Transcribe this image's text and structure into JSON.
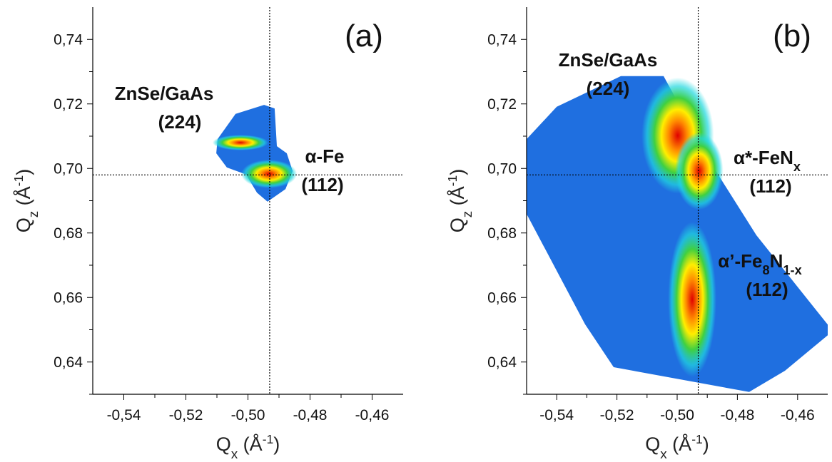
{
  "chart_data": [
    {
      "type": "map",
      "footprint_color": "#1f6fe0",
      "xlim": [
        -0.55,
        -0.45
      ],
      "ylim": [
        0.63,
        0.75
      ],
      "xticks": [
        {
          "value": -0.54,
          "label": "-0,54"
        },
        {
          "value": -0.52,
          "label": "-0,52"
        },
        {
          "value": -0.5,
          "label": "-0,50"
        },
        {
          "value": -0.48,
          "label": "-0,48"
        },
        {
          "value": -0.46,
          "label": "-0,46"
        }
      ],
      "yticks": [
        {
          "value": 0.64,
          "label": "0,64"
        },
        {
          "value": 0.66,
          "label": "0,66"
        },
        {
          "value": 0.68,
          "label": "0,68"
        },
        {
          "value": 0.7,
          "label": "0,70"
        },
        {
          "value": 0.72,
          "label": "0,72"
        },
        {
          "value": 0.74,
          "label": "0,74"
        }
      ],
      "xlabel": [
        {
          "t": "Q"
        },
        {
          "sub": "x"
        },
        {
          "t": " (Å"
        },
        {
          "sup": "-1"
        },
        {
          "t": ")"
        }
      ],
      "ylabel": [
        {
          "t": "Q"
        },
        {
          "sub": "z"
        },
        {
          "t": " (Å"
        },
        {
          "sup": "-1"
        },
        {
          "t": ")"
        }
      ],
      "reflines": {
        "x": -0.493,
        "y": 0.698
      },
      "footprint": {
        "x": [
          -0.5098,
          -0.504,
          -0.4948,
          -0.4914,
          -0.4907,
          -0.4875,
          -0.4856,
          -0.4879,
          -0.4937,
          -0.4971,
          -0.5006,
          -0.5068,
          -0.5102
        ],
        "y": [
          0.7091,
          0.7169,
          0.7197,
          0.7186,
          0.7069,
          0.7047,
          0.6992,
          0.6936,
          0.6897,
          0.6925,
          0.6981,
          0.7003,
          0.7047
        ]
      },
      "peaks": [
        {
          "x": -0.5024,
          "y": 0.708,
          "sx": 0.0045,
          "sy": 0.0012
        },
        {
          "x": -0.4932,
          "y": 0.6983,
          "sx": 0.0045,
          "sy": 0.0022
        }
      ],
      "annotations": [
        [
          {
            "t": "(a)"
          }
        ],
        [
          {
            "t": "ZnSe/GaAs"
          }
        ],
        [
          {
            "t": "(224)"
          }
        ],
        [
          {
            "t": "α-Fe"
          }
        ],
        [
          {
            "t": "(112)"
          }
        ]
      ]
    },
    {
      "type": "map",
      "footprint_color": "#1f6fe0",
      "xlim": [
        -0.55,
        -0.45
      ],
      "ylim": [
        0.63,
        0.75
      ],
      "xticks": [
        {
          "value": -0.54,
          "label": "-0,54"
        },
        {
          "value": -0.52,
          "label": "-0,52"
        },
        {
          "value": -0.5,
          "label": "-0,50"
        },
        {
          "value": -0.48,
          "label": "-0,48"
        },
        {
          "value": -0.46,
          "label": "-0,46"
        }
      ],
      "yticks": [
        {
          "value": 0.64,
          "label": "0,64"
        },
        {
          "value": 0.66,
          "label": "0,66"
        },
        {
          "value": 0.68,
          "label": "0,68"
        },
        {
          "value": 0.7,
          "label": "0,70"
        },
        {
          "value": 0.72,
          "label": "0,72"
        },
        {
          "value": 0.74,
          "label": "0,74"
        }
      ],
      "xlabel": [
        {
          "t": "Q"
        },
        {
          "sub": "x"
        },
        {
          "t": " (Å"
        },
        {
          "sup": "-1"
        },
        {
          "t": ")"
        }
      ],
      "ylabel": [
        {
          "t": "Q"
        },
        {
          "sub": "z"
        },
        {
          "t": " (Å"
        },
        {
          "sup": "-1"
        },
        {
          "t": ")"
        }
      ],
      "reflines": {
        "x": -0.493,
        "y": 0.698
      },
      "footprint": {
        "x": [
          -0.55,
          -0.54,
          -0.5187,
          -0.5045,
          -0.4879,
          -0.4737,
          -0.45,
          -0.45,
          -0.4642,
          -0.4761,
          -0.5211,
          -0.5306,
          -0.55
        ],
        "y": [
          0.7091,
          0.7191,
          0.7286,
          0.7286,
          0.7003,
          0.6793,
          0.6516,
          0.6483,
          0.6373,
          0.6307,
          0.6384,
          0.6517,
          0.6859
        ]
      },
      "peaks": [
        {
          "x": -0.4998,
          "y": 0.7102,
          "sx": 0.006,
          "sy": 0.009
        },
        {
          "x": -0.4927,
          "y": 0.6992,
          "sx": 0.004,
          "sy": 0.006
        },
        {
          "x": -0.495,
          "y": 0.6594,
          "sx": 0.004,
          "sy": 0.012
        }
      ],
      "annotations": [
        [
          {
            "t": "(b)"
          }
        ],
        [
          {
            "t": "ZnSe/GaAs"
          }
        ],
        [
          {
            "t": "(224)"
          }
        ],
        [
          {
            "t": "α*-FeN"
          },
          {
            "sub": "x"
          }
        ],
        [
          {
            "t": "(112)"
          }
        ],
        [
          {
            "t": "α’-Fe"
          },
          {
            "sub": "8"
          },
          {
            "t": "N"
          },
          {
            "sub": "1-x"
          }
        ],
        [
          {
            "t": "(112)"
          }
        ]
      ]
    }
  ]
}
